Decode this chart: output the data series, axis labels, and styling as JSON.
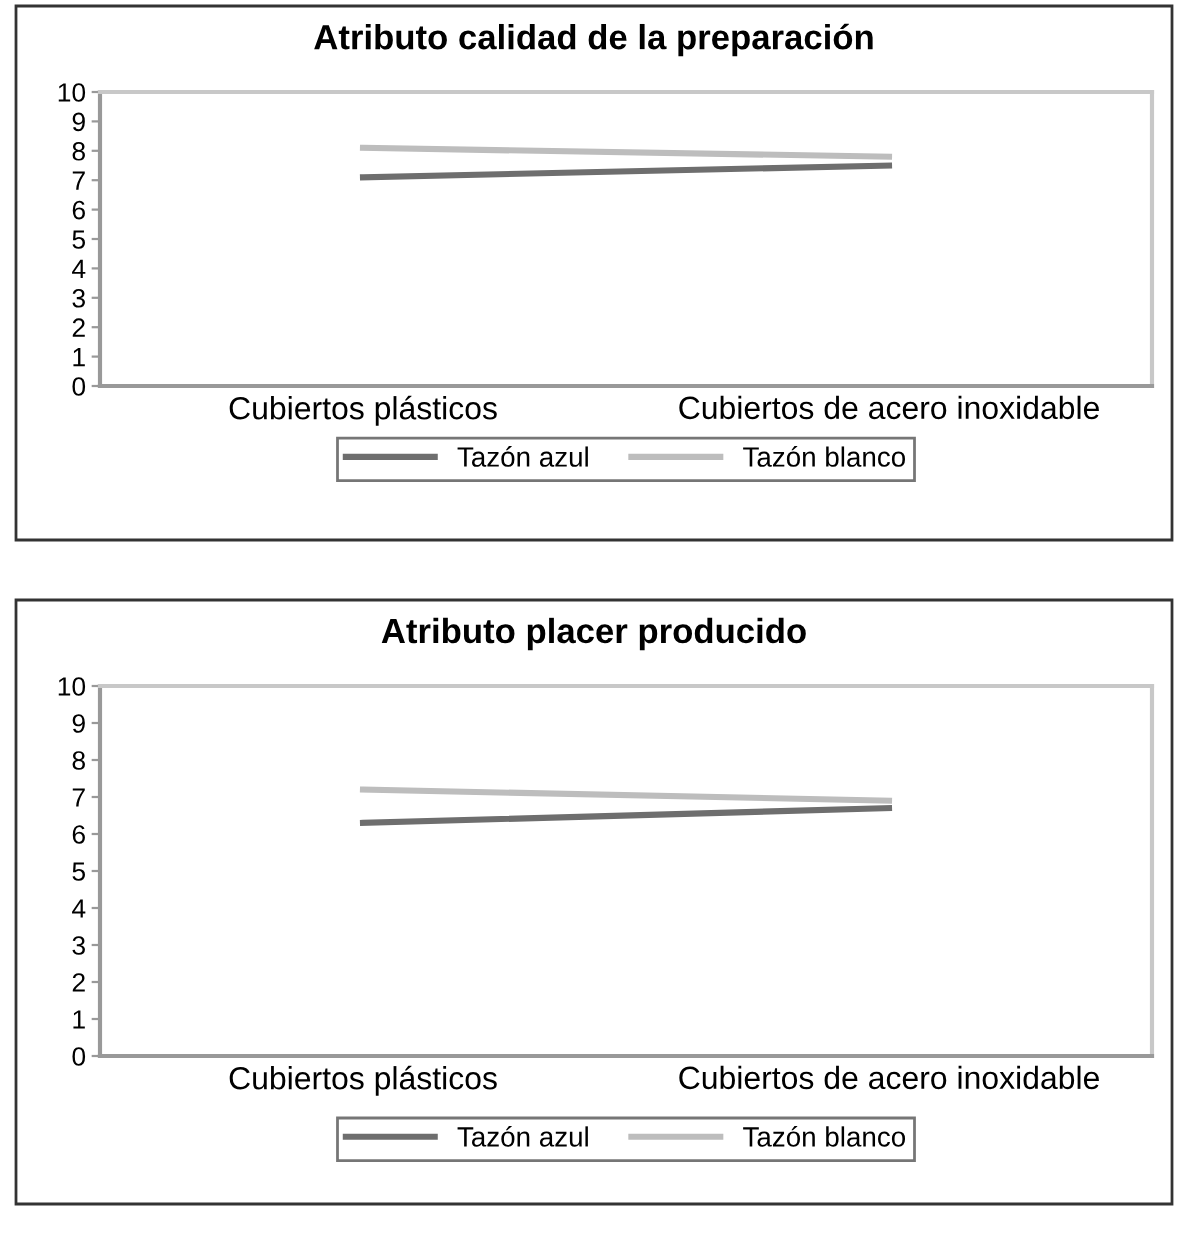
{
  "chart_data": [
    {
      "type": "line",
      "title": "Atributo calidad de la preparación",
      "categories": [
        "Cubiertos plásticos",
        "Cubiertos de acero inoxidable"
      ],
      "ylim": [
        0,
        10
      ],
      "yticks": [
        0,
        1,
        2,
        3,
        4,
        5,
        6,
        7,
        8,
        9,
        10
      ],
      "grid": false,
      "legend": "bottom",
      "marker": "none",
      "series": [
        {
          "name": "Tazón azul",
          "color": "#6e6e6e",
          "values": [
            7.1,
            7.5
          ]
        },
        {
          "name": "Tazón blanco",
          "color": "#bdbdbd",
          "values": [
            8.1,
            7.8
          ]
        }
      ]
    },
    {
      "type": "line",
      "title": "Atributo placer producido",
      "categories": [
        "Cubiertos plásticos",
        "Cubiertos de acero inoxidable"
      ],
      "ylim": [
        0,
        10
      ],
      "yticks": [
        0,
        1,
        2,
        3,
        4,
        5,
        6,
        7,
        8,
        9,
        10
      ],
      "grid": false,
      "legend": "bottom",
      "marker": "none",
      "series": [
        {
          "name": "Tazón azul",
          "color": "#6e6e6e",
          "values": [
            6.3,
            6.7
          ]
        },
        {
          "name": "Tazón blanco",
          "color": "#bdbdbd",
          "values": [
            7.2,
            6.9
          ]
        }
      ]
    }
  ]
}
